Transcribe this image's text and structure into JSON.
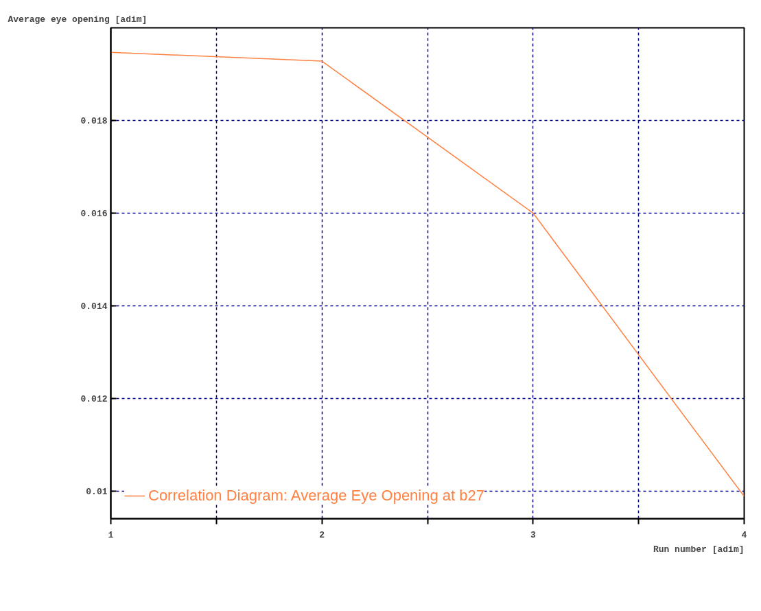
{
  "chart_data": {
    "type": "line",
    "xlabel": "Run number [adim]",
    "ylabel": "Average eye opening  [adim]",
    "x": [
      1,
      2,
      3,
      4
    ],
    "series": [
      {
        "name": "Correlation Diagram: Average Eye Opening at b27",
        "color": "#ff8040",
        "values": [
          0.01947,
          0.01928,
          0.016,
          0.00988
        ]
      }
    ],
    "xlim": [
      1,
      4
    ],
    "ylim": [
      0.0094,
      0.02
    ],
    "xticks": [
      1,
      {
        "value": 1.5,
        "label": null
      },
      2,
      {
        "value": 2.5,
        "label": null
      },
      3,
      {
        "value": 3.5,
        "label": null
      },
      4
    ],
    "yticks": [
      0.01,
      0.012,
      0.014,
      0.016,
      0.018
    ],
    "grid": true,
    "legend": "bottom left",
    "marker": "none",
    "line_style": "solid"
  }
}
